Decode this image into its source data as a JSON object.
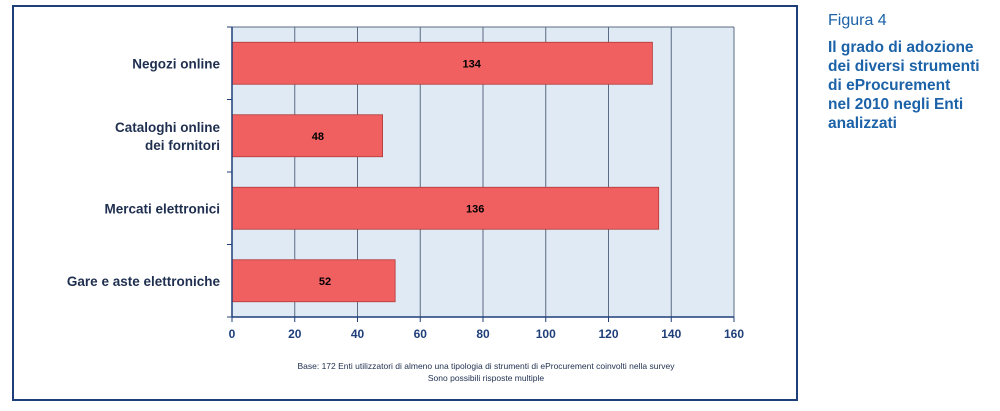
{
  "figure": {
    "label": "Figura 4",
    "title_lines": [
      "Il grado di adozione",
      "dei diversi strumenti",
      "di eProcurement",
      "nel 2010 negli Enti",
      "analizzati"
    ]
  },
  "chart_data": {
    "type": "bar",
    "orientation": "horizontal",
    "categories": [
      [
        "Negozi online"
      ],
      [
        "Cataloghi online",
        "dei fornitori"
      ],
      [
        "Mercati elettronici"
      ],
      [
        "Gare e aste elettroniche"
      ]
    ],
    "values": [
      134,
      48,
      136,
      52
    ],
    "data_labels": [
      "134",
      "48",
      "136",
      "52"
    ],
    "x_ticks": [
      "0",
      "20",
      "40",
      "60",
      "80",
      "100",
      "120",
      "140",
      "160"
    ],
    "xlim": [
      0,
      160
    ],
    "grid": true,
    "note_lines": [
      "Base: 172 Enti utilizzatori di almeno una tipologia di strumenti di eProcurement coinvolti nella survey",
      "Sono possibili risposte multiple"
    ],
    "colors": {
      "bar": "#f06060",
      "bar_border": "#b03a3a",
      "plot_bg": "#dfeaf4",
      "grid": "#5a6b82",
      "axis": "#1f3f7a",
      "tick_text": "#1f3f7a",
      "category_text": "#1f2f4f",
      "note_text": "#1f2f4f"
    }
  }
}
